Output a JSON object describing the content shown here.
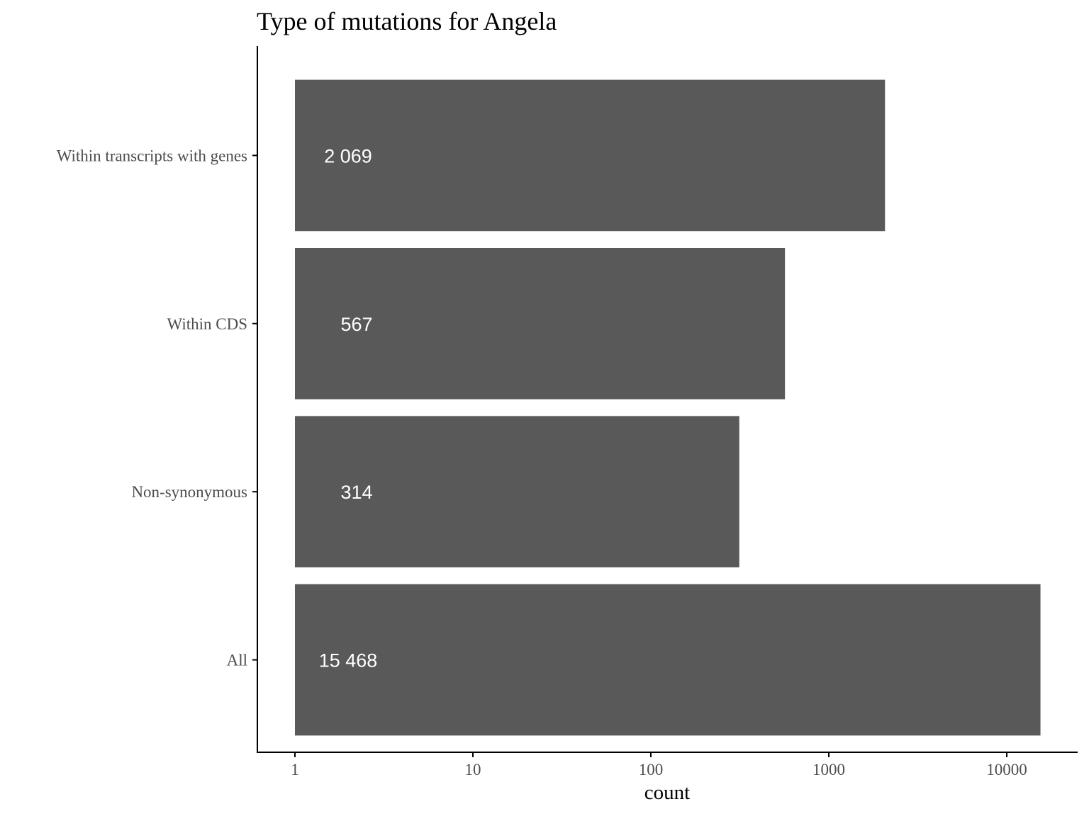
{
  "chart_data": {
    "type": "bar",
    "orientation": "horizontal",
    "title": "Type of mutations for Angela",
    "xlabel": "count",
    "ylabel": "",
    "x_scale": "log10",
    "xlim": [
      0.8,
      25000
    ],
    "x_ticks": [
      1,
      10,
      100,
      1000,
      10000
    ],
    "x_tick_labels": [
      "1",
      "10",
      "100",
      "1000",
      "10000"
    ],
    "categories": [
      "Within transcripts with genes",
      "Within CDS",
      "Non-synonymous",
      "All"
    ],
    "values": [
      2069,
      567,
      314,
      15468
    ],
    "data_labels": [
      "2 069",
      "567",
      "314",
      "15 468"
    ],
    "grid": false,
    "legend": "none"
  },
  "colors": {
    "bar": "#595959",
    "bar_label": "#ffffff",
    "axis": "#000000",
    "tick_label": "#4d4d4d",
    "background": "#ffffff"
  }
}
